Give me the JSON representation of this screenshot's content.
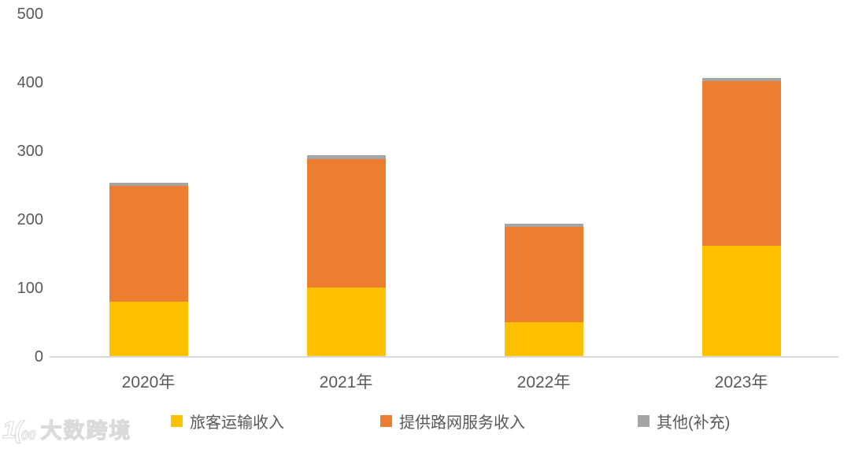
{
  "chart_data": {
    "type": "bar",
    "stacked": true,
    "title": "",
    "xlabel": "",
    "ylabel": "",
    "categories": [
      "2020年",
      "2021年",
      "2022年",
      "2023年"
    ],
    "series": [
      {
        "name": "旅客运输收入",
        "color": "#FFC000",
        "values": [
          79,
          100,
          50,
          161
        ]
      },
      {
        "name": "提供路网服务收入",
        "color": "#ED7D31",
        "values": [
          169,
          187,
          139,
          240
        ]
      },
      {
        "name": "其他(补充)",
        "color": "#A5A5A5",
        "values": [
          5,
          6,
          4,
          5
        ]
      }
    ],
    "ylim": [
      0,
      500
    ],
    "yticks": [
      0,
      100,
      200,
      300,
      400,
      500
    ],
    "grid": false,
    "legend_position": "bottom",
    "axis_text_color": "#595959",
    "axis_line_color": "#D9D9D9"
  },
  "watermark": {
    "logo_main": "1(",
    "logo_sup": "00",
    "text": "大数跨境"
  }
}
